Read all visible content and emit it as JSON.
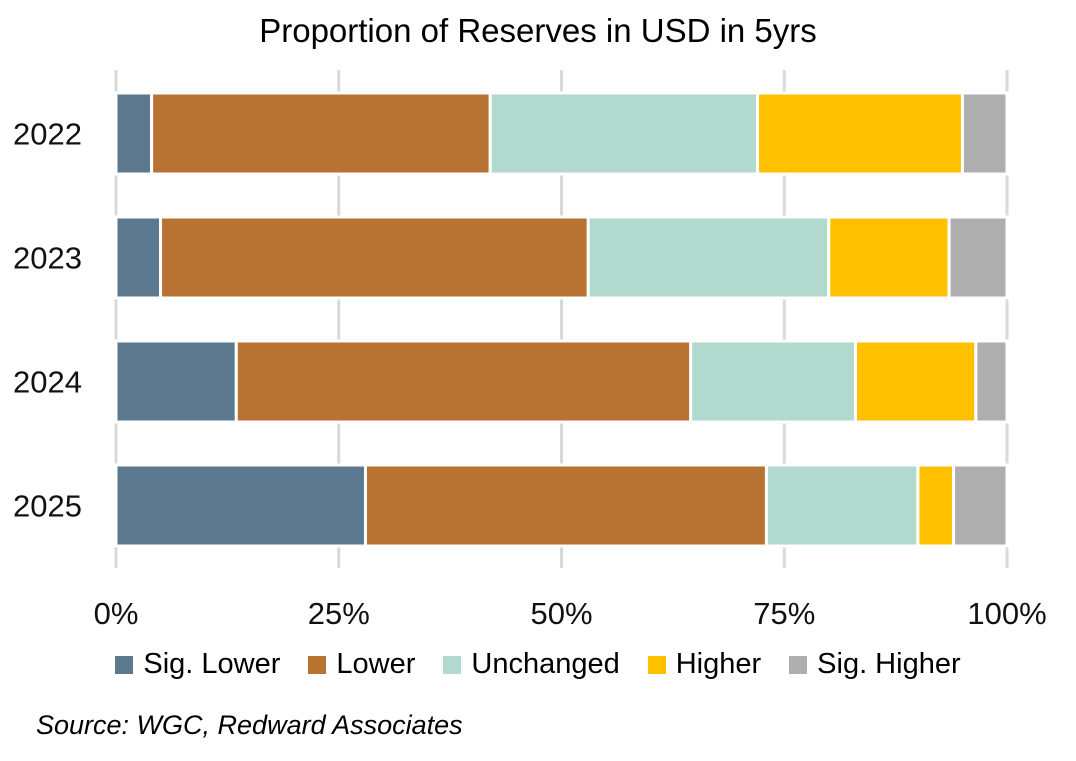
{
  "chart_data": {
    "type": "bar",
    "orientation": "horizontal",
    "stacked": true,
    "title": "Proportion of Reserves in USD in 5yrs",
    "categories": [
      "2022",
      "2023",
      "2024",
      "2025"
    ],
    "series": [
      {
        "name": "Sig. Lower",
        "color": "#5b788e",
        "values": [
          4,
          5,
          13.5,
          28
        ]
      },
      {
        "name": "Lower",
        "color": "#b87333",
        "values": [
          38,
          48,
          51,
          45
        ]
      },
      {
        "name": "Unchanged",
        "color": "#b2d9ce",
        "values": [
          30,
          27,
          18.5,
          17
        ]
      },
      {
        "name": "Higher",
        "color": "#ffc000",
        "values": [
          23,
          13.5,
          13.5,
          4
        ]
      },
      {
        "name": "Sig. Higher",
        "color": "#aeaeae",
        "values": [
          5,
          6.5,
          3.5,
          6
        ]
      }
    ],
    "xticks": [
      "0%",
      "25%",
      "50%",
      "75%",
      "100%"
    ],
    "xlim": [
      0,
      100
    ],
    "grid": true,
    "legend_position": "bottom",
    "source": "Source: WGC, Redward Associates"
  }
}
